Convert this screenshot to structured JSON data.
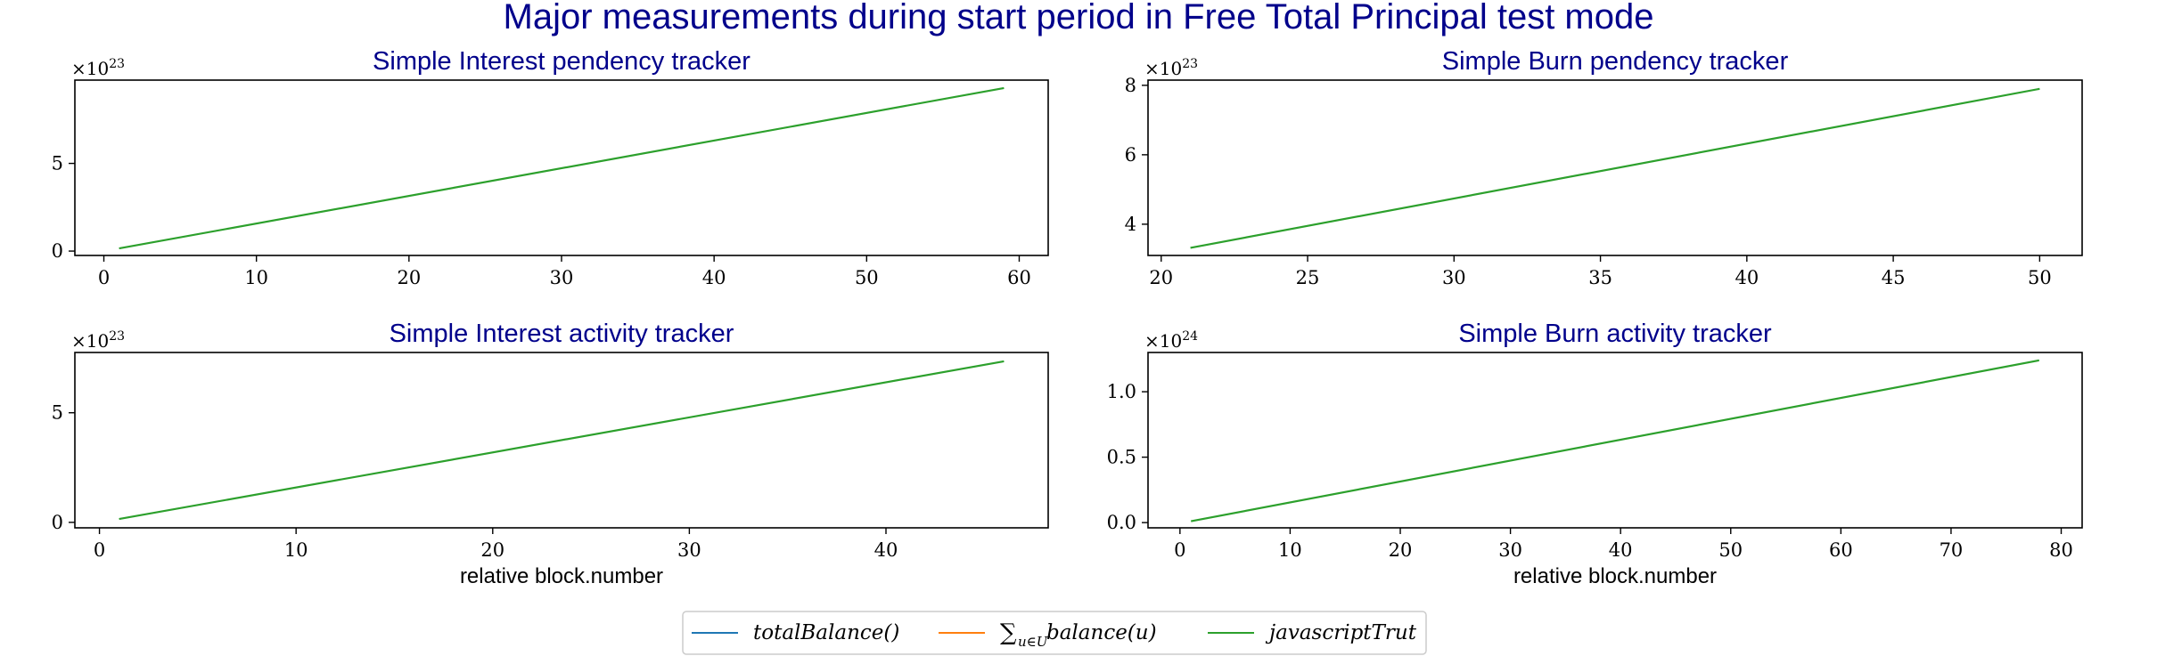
{
  "figure": {
    "title": "Major measurements during start period in Free Total Principal test mode",
    "title_color": "#00008b"
  },
  "legend": {
    "placement": "bottom-center",
    "entries": [
      {
        "label": "totalBalance()",
        "color": "#1f77b4"
      },
      {
        "label": "∑u∈U balance(u)",
        "color": "#ff7f0e"
      },
      {
        "label": "javascriptTrut",
        "color": "#2ca02c"
      }
    ]
  },
  "chart_data": [
    {
      "type": "line",
      "title": "Simple Interest pendency tracker",
      "xlabel": "",
      "ylabel": "",
      "multiplier": "×10^23",
      "xlim": [
        -1.9,
        61.9
      ],
      "ylim": [
        -0.25,
        9.75
      ],
      "xticks": [
        0,
        10,
        20,
        30,
        40,
        50,
        60
      ],
      "yticks": [
        {
          "v": 0,
          "label": "0"
        },
        {
          "v": 5,
          "label": "5"
        }
      ],
      "grid": false,
      "series": [
        {
          "color": "#2ca02c",
          "x": [
            1,
            59
          ],
          "y": [
            0.15,
            9.3
          ]
        }
      ]
    },
    {
      "type": "line",
      "title": "Simple Burn pendency tracker",
      "xlabel": "",
      "ylabel": "",
      "multiplier": "×10^23",
      "xlim": [
        19.55,
        51.45
      ],
      "ylim": [
        3.1,
        8.15
      ],
      "xticks": [
        20,
        25,
        30,
        35,
        40,
        45,
        50
      ],
      "yticks": [
        {
          "v": 4,
          "label": "4"
        },
        {
          "v": 6,
          "label": "6"
        },
        {
          "v": 8,
          "label": "8"
        }
      ],
      "grid": false,
      "series": [
        {
          "color": "#2ca02c",
          "x": [
            21,
            50
          ],
          "y": [
            3.32,
            7.9
          ]
        }
      ]
    },
    {
      "type": "line",
      "title": "Simple Interest activity tracker",
      "xlabel": "relative block.number",
      "ylabel": "",
      "multiplier": "×10^23",
      "xlim": [
        -1.25,
        48.25
      ],
      "ylim": [
        -0.25,
        7.75
      ],
      "xticks": [
        0,
        10,
        20,
        30,
        40
      ],
      "yticks": [
        {
          "v": 0,
          "label": "0"
        },
        {
          "v": 5,
          "label": "5"
        }
      ],
      "grid": false,
      "series": [
        {
          "color": "#2ca02c",
          "x": [
            1,
            46
          ],
          "y": [
            0.15,
            7.35
          ]
        }
      ]
    },
    {
      "type": "line",
      "title": "Simple Burn activity tracker",
      "xlabel": "relative block.number",
      "ylabel": "",
      "multiplier": "×10^24",
      "xlim": [
        -2.9,
        81.9
      ],
      "ylim": [
        -0.04,
        1.3
      ],
      "xticks": [
        0,
        10,
        20,
        30,
        40,
        50,
        60,
        70,
        80
      ],
      "yticks": [
        {
          "v": 0,
          "label": "0.0"
        },
        {
          "v": 0.5,
          "label": "0.5"
        },
        {
          "v": 1,
          "label": "1.0"
        }
      ],
      "grid": false,
      "series": [
        {
          "color": "#2ca02c",
          "x": [
            1,
            78
          ],
          "y": [
            0.01,
            1.24
          ]
        }
      ]
    }
  ]
}
